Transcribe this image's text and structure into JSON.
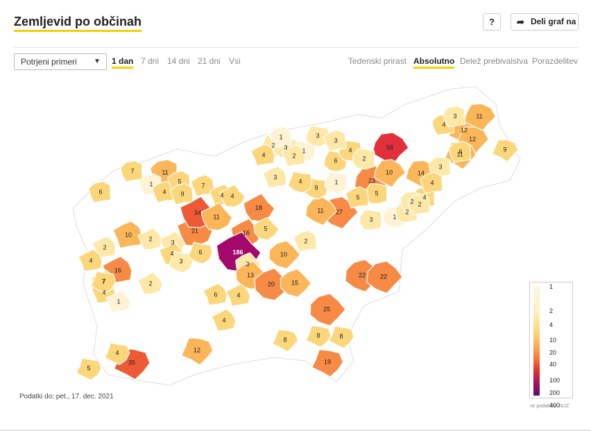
{
  "header": {
    "title": "Zemljevid po občinah",
    "help_label": "?",
    "share_label": "Deli graf na"
  },
  "controls": {
    "selected_option": "Potrjeni primeri",
    "time_tabs": [
      {
        "label": "1 dan",
        "active": true
      },
      {
        "label": "7 dni",
        "active": false
      },
      {
        "label": "14 dni",
        "active": false
      },
      {
        "label": "21 dni",
        "active": false
      },
      {
        "label": "Vsi",
        "active": false
      }
    ],
    "mode_tabs": [
      {
        "label": "Tedenski prirast",
        "active": false
      },
      {
        "label": "Absolutno",
        "active": true
      },
      {
        "label": "Delež prebivalstva",
        "active": false
      },
      {
        "label": "Porazdelitev",
        "active": false
      }
    ]
  },
  "legend": {
    "ticks": [
      "1",
      "2",
      "4",
      "10",
      "20",
      "40",
      "100",
      "200",
      "400"
    ]
  },
  "footer": {
    "updated": "Podatki do: pet., 17. dec. 2021",
    "source": "vir podatkov: NIJZ"
  },
  "colors": {
    "accent": "#f5d000",
    "c0": "#ffffff",
    "c1": "#fff3d6",
    "c2": "#fde8a8",
    "c3": "#fcd67a",
    "c4": "#fbb65a",
    "c5": "#f78a45",
    "c6": "#ee5a36",
    "c7": "#e1303c",
    "c8": "#a3096a"
  },
  "municipality_values": [
    {
      "v": "7"
    },
    {
      "v": "11"
    },
    {
      "v": "6"
    },
    {
      "v": "1"
    },
    {
      "v": "4"
    },
    {
      "v": "5"
    },
    {
      "v": "9"
    },
    {
      "v": "7"
    },
    {
      "v": "4"
    },
    {
      "v": "10"
    },
    {
      "v": "2"
    },
    {
      "v": "16"
    },
    {
      "v": "4"
    },
    {
      "v": "7"
    },
    {
      "v": "4"
    },
    {
      "v": "1"
    },
    {
      "v": "2"
    },
    {
      "v": "2"
    },
    {
      "v": "3"
    },
    {
      "v": "4"
    },
    {
      "v": "21"
    },
    {
      "v": "34"
    },
    {
      "v": "11"
    },
    {
      "v": "4"
    },
    {
      "v": "18"
    },
    {
      "v": "16"
    },
    {
      "v": "186"
    },
    {
      "v": "5"
    },
    {
      "v": "3"
    },
    {
      "v": "13"
    },
    {
      "v": "20"
    },
    {
      "v": "15"
    },
    {
      "v": "10"
    },
    {
      "v": "25"
    },
    {
      "v": "22"
    },
    {
      "v": "22"
    },
    {
      "v": "27"
    },
    {
      "v": "11"
    },
    {
      "v": "23"
    },
    {
      "v": "58"
    },
    {
      "v": "10"
    },
    {
      "v": "14"
    },
    {
      "v": "12"
    },
    {
      "v": "11"
    },
    {
      "v": "12"
    },
    {
      "v": "9"
    },
    {
      "v": "11"
    },
    {
      "v": "8"
    },
    {
      "v": "12"
    },
    {
      "v": "35"
    },
    {
      "v": "19"
    },
    {
      "v": "8"
    },
    {
      "v": "8"
    },
    {
      "v": "5"
    },
    {
      "v": "4"
    },
    {
      "v": "7"
    },
    {
      "v": "3"
    },
    {
      "v": "6"
    },
    {
      "v": "9"
    },
    {
      "v": "4"
    },
    {
      "v": "2"
    },
    {
      "v": "3"
    },
    {
      "v": "1"
    },
    {
      "v": "3"
    },
    {
      "v": "6"
    },
    {
      "v": "1"
    },
    {
      "v": "4"
    },
    {
      "v": "2"
    },
    {
      "v": "5"
    },
    {
      "v": "3"
    },
    {
      "v": "1"
    },
    {
      "v": "2"
    },
    {
      "v": "4"
    },
    {
      "v": "2"
    },
    {
      "v": "3"
    },
    {
      "v": "4"
    },
    {
      "v": "3"
    },
    {
      "v": "6"
    },
    {
      "v": "2"
    },
    {
      "v": "4"
    },
    {
      "v": "3"
    },
    {
      "v": "5"
    },
    {
      "v": "2"
    },
    {
      "v": "1"
    },
    {
      "v": "4"
    },
    {
      "v": "3"
    },
    {
      "v": "2"
    },
    {
      "v": "6"
    },
    {
      "v": "4"
    },
    {
      "v": "4"
    }
  ]
}
